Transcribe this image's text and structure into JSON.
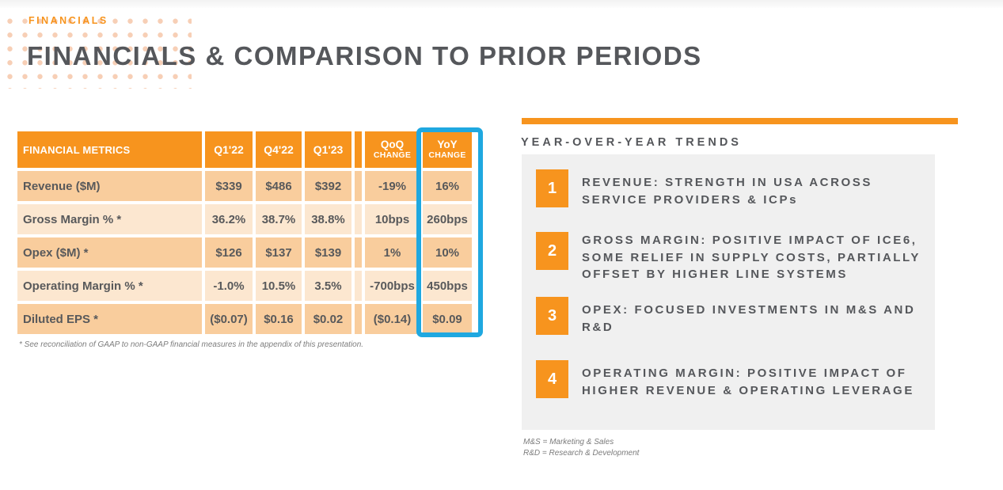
{
  "slide": {
    "eyebrow": "FINANCIALS",
    "title": "FINANCIALS & COMPARISON TO PRIOR PERIODS"
  },
  "colors": {
    "accent_orange": "#F7941E",
    "row_dark": "#F9CD9D",
    "row_light": "#FCE7D0",
    "highlight_blue": "#1FA8E0",
    "text_dark": "#58595B",
    "panel_gray": "#F0F0F0"
  },
  "table": {
    "header": {
      "metric": "FINANCIAL METRICS",
      "q1": "Q1'22",
      "q2": "Q4'22",
      "q3": "Q1'23",
      "qoq_label": "QoQ",
      "yoy_label": "YoY",
      "change_label": "CHANGE"
    },
    "rows": [
      {
        "metric": "Revenue ($M)",
        "v1": "$339",
        "v2": "$486",
        "v3": "$392",
        "qoq": "-19%",
        "yoy": "16%"
      },
      {
        "metric": "Gross Margin % *",
        "v1": "36.2%",
        "v2": "38.7%",
        "v3": "38.8%",
        "qoq": "10bps",
        "yoy": "260bps"
      },
      {
        "metric": "Opex ($M) *",
        "v1": "$126",
        "v2": "$137",
        "v3": "$139",
        "qoq": "1%",
        "yoy": "10%"
      },
      {
        "metric": "Operating Margin % *",
        "v1": "-1.0%",
        "v2": "10.5%",
        "v3": "3.5%",
        "qoq": "-700bps",
        "yoy": "450bps"
      },
      {
        "metric": "Diluted EPS *",
        "v1": "($0.07)",
        "v2": "$0.16",
        "v3": "$0.02",
        "qoq": "($0.14)",
        "yoy": "$0.09"
      }
    ],
    "footnote": "* See reconciliation of GAAP to non-GAAP financial measures in the appendix of this presentation."
  },
  "trends": {
    "heading": "YEAR-OVER-YEAR TRENDS",
    "items": [
      {
        "num": "1",
        "text": "REVENUE: STRENGTH IN USA ACROSS\nSERVICE PROVIDERS & ICPs"
      },
      {
        "num": "2",
        "text": "GROSS MARGIN: POSITIVE IMPACT OF ICE6,\nSOME RELIEF IN SUPPLY COSTS, PARTIALLY\nOFFSET BY HIGHER LINE SYSTEMS"
      },
      {
        "num": "3",
        "text": "OPEX: FOCUSED INVESTMENTS IN M&S AND\nR&D"
      },
      {
        "num": "4",
        "text": "OPERATING MARGIN: POSITIVE IMPACT OF\nHIGHER REVENUE & OPERATING LEVERAGE"
      }
    ],
    "footnotes": [
      "M&S = Marketing & Sales",
      "R&D = Research & Development"
    ]
  }
}
